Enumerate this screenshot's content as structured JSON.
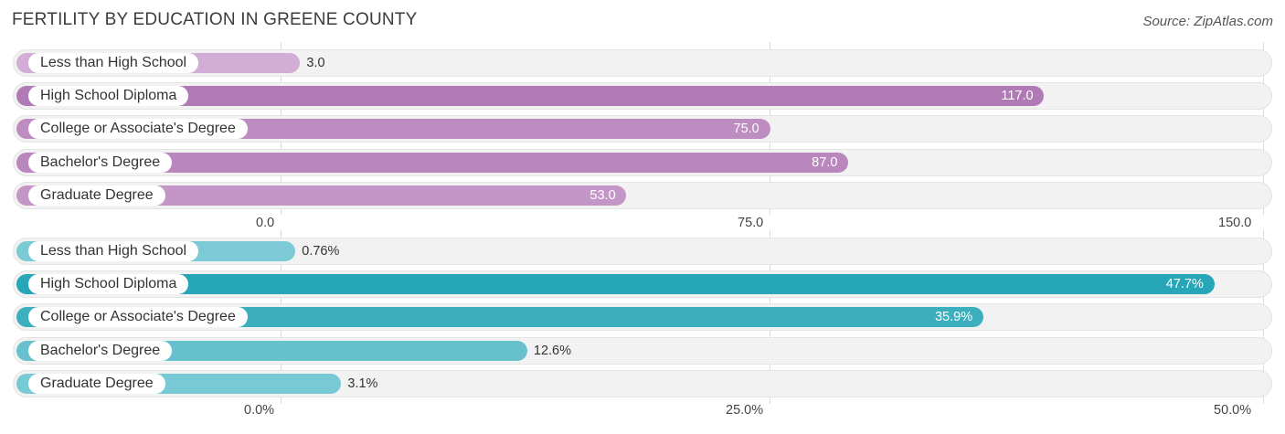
{
  "title": "FERTILITY BY EDUCATION IN GREENE COUNTY",
  "source": "Source: ZipAtlas.com",
  "colors": {
    "purple": "#b07ab5",
    "purple_light": "#d3aed6",
    "teal": "#27a6b7",
    "teal_light": "#7dcbd5",
    "track": "#f2f2f2"
  },
  "chart_data": [
    {
      "type": "bar",
      "orientation": "horizontal",
      "categories": [
        "Less than High School",
        "High School Diploma",
        "College or Associate's Degree",
        "Bachelor's Degree",
        "Graduate Degree"
      ],
      "values": [
        3.0,
        117.0,
        75.0,
        87.0,
        53.0
      ],
      "value_labels": [
        "3.0",
        "117.0",
        "75.0",
        "87.0",
        "53.0"
      ],
      "xlim": [
        0,
        150
      ],
      "ticks": [
        "0.0",
        "75.0",
        "150.0"
      ],
      "color": "#b07ab5"
    },
    {
      "type": "bar",
      "orientation": "horizontal",
      "categories": [
        "Less than High School",
        "High School Diploma",
        "College or Associate's Degree",
        "Bachelor's Degree",
        "Graduate Degree"
      ],
      "values": [
        0.76,
        47.7,
        35.9,
        12.6,
        3.1
      ],
      "value_labels": [
        "0.76%",
        "47.7%",
        "35.9%",
        "12.6%",
        "3.1%"
      ],
      "xlim": [
        0,
        50
      ],
      "ticks": [
        "0.0%",
        "25.0%",
        "50.0%"
      ],
      "color": "#27a6b7"
    }
  ]
}
